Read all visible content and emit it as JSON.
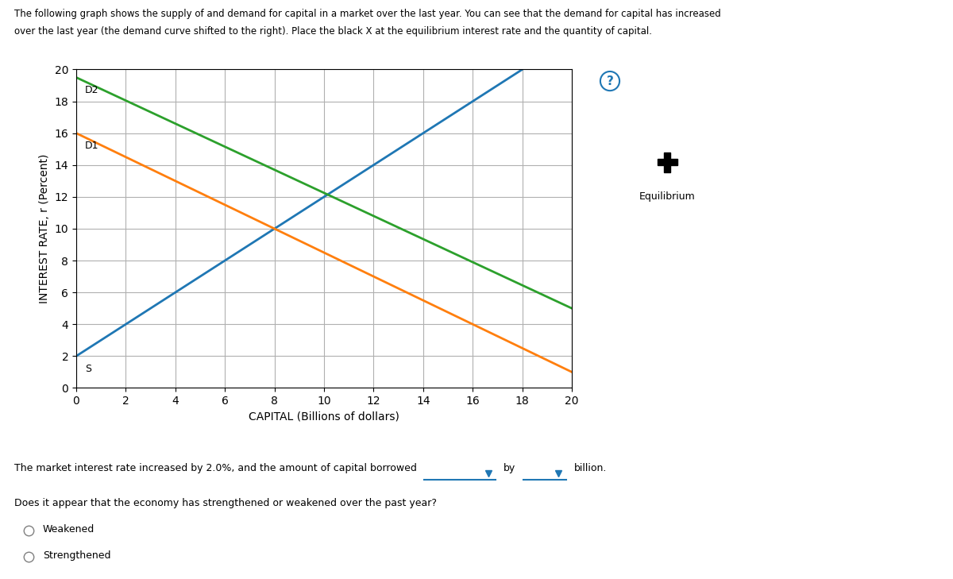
{
  "chart_data": {
    "type": "line",
    "title": "The following graph shows the supply of and demand for capital in a market over the last year. You can see that the demand for capital has increased",
    "subtitle": "over the last year (the demand curve shifted to the right). Place the black X at the equilibrium interest rate and the quantity of capital.",
    "xlabel": "CAPITAL (Billions of dollars)",
    "ylabel": "INTEREST RATE, r (Percent)",
    "xlim": [
      0,
      20
    ],
    "ylim": [
      0,
      20
    ],
    "xticks": [
      0,
      2,
      4,
      6,
      8,
      10,
      12,
      14,
      16,
      18,
      20
    ],
    "yticks": [
      0,
      2,
      4,
      6,
      8,
      10,
      12,
      14,
      16,
      18,
      20
    ],
    "grid": true,
    "series": [
      {
        "name": "S",
        "x": [
          0,
          18
        ],
        "values": [
          2,
          20
        ]
      },
      {
        "name": "D1",
        "x": [
          0,
          20
        ],
        "values": [
          16,
          1
        ]
      },
      {
        "name": "D2",
        "x": [
          0,
          20
        ],
        "values": [
          19.5,
          5
        ]
      }
    ],
    "annotations": [
      "?",
      "Equilibrium",
      "The market interest rate increased by 2.0%, and the amount of capital borrowed",
      "by",
      "billion.",
      "Does it appear that the economy has strengthened or weakened over the past year?",
      "Weakened",
      "Strengthened"
    ]
  }
}
